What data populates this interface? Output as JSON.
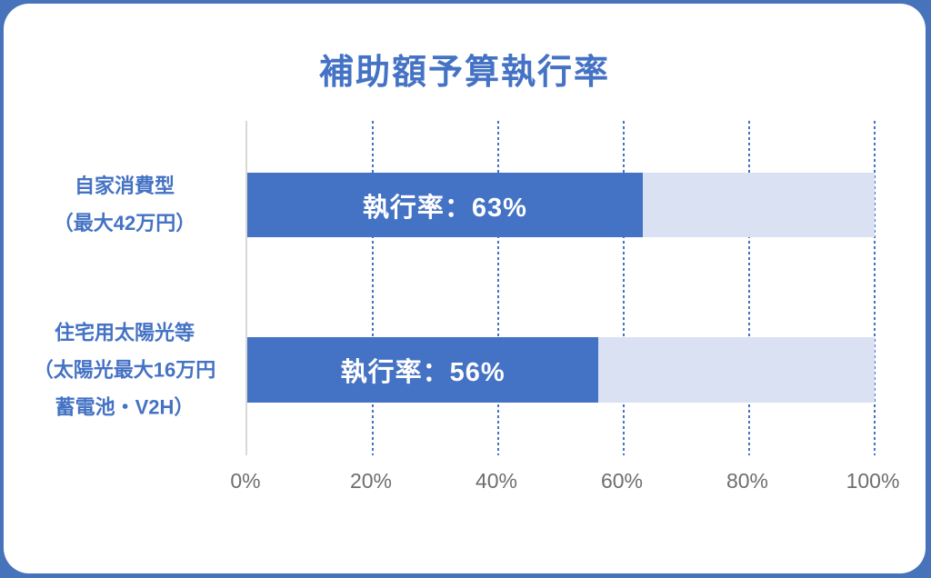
{
  "frame": {
    "background_color": "#4673B9",
    "card_color": "#FFFFFF"
  },
  "chart_data": {
    "type": "bar",
    "orientation": "horizontal",
    "title": "補助額予算執行率",
    "title_color": "#4472C4",
    "categories": [
      {
        "lines": [
          "自家消費型",
          "（最大42万円）"
        ]
      },
      {
        "lines": [
          "住宅用太陽光等",
          "（太陽光最大16万円",
          "蓄電池・V2H）"
        ]
      }
    ],
    "values": [
      63,
      56
    ],
    "bar_labels": [
      "執行率：63%",
      "執行率：56%"
    ],
    "xlim": [
      0,
      100
    ],
    "x_ticks": [
      {
        "value": 0,
        "label": "0%"
      },
      {
        "value": 20,
        "label": "20%"
      },
      {
        "value": 40,
        "label": "40%"
      },
      {
        "value": 60,
        "label": "60%"
      },
      {
        "value": 80,
        "label": "80%"
      },
      {
        "value": 100,
        "label": "100%"
      }
    ],
    "bar_color": "#4472C4",
    "track_color": "#DAE1F2",
    "gridline_style": "dotted",
    "gridline_color": "#4472C4",
    "axis_line_color": "#D8D8D8",
    "tick_label_color": "#6E6E6E",
    "grid": "vertical",
    "legend": "none"
  }
}
